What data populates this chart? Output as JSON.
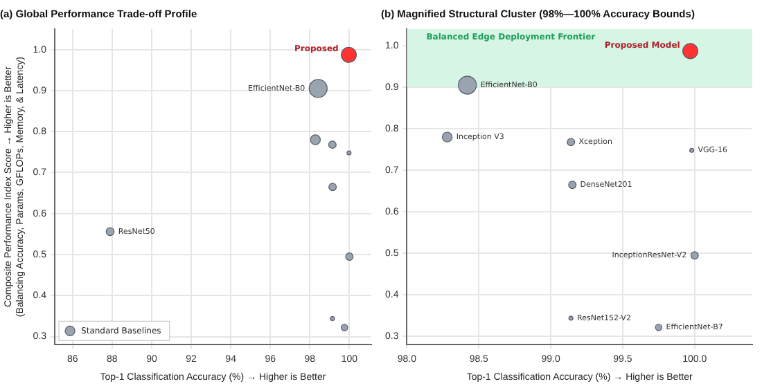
{
  "chart_data": [
    {
      "type": "bubble",
      "title": "(a) Global Performance Trade-off Profile",
      "xlabel": "Top-1 Classification Accuracy (%) → Higher is Better",
      "ylabel": "Composite Performance Index Score → Higher is Better\n(Balancing Accuracy, Params, GFLOPs, Memory, & Latency)",
      "xlim": [
        85.1,
        101.1
      ],
      "xticks": [
        86,
        88,
        90,
        92,
        94,
        96,
        98,
        100
      ],
      "ylim": [
        0.28,
        1.05
      ],
      "yticks": [
        0.3,
        0.4,
        0.5,
        0.6,
        0.7,
        0.8,
        0.9,
        {
          "value": 1,
          "label": "1.0"
        }
      ],
      "grid": true,
      "legend": "bottom left",
      "marker": "circle",
      "series": [
        {
          "name": "Standard Baselines",
          "color": "#9aa3b0",
          "x": [
            98.42,
            98.28,
            99.14,
            99.98,
            99.15,
            100.0,
            99.14,
            99.75,
            87.9
          ],
          "values": [
            0.905,
            0.78,
            0.768,
            0.748,
            0.665,
            0.495,
            0.344,
            0.322,
            0.556
          ],
          "sizes": [
            1,
            0.3,
            0.17,
            0.05,
            0.17,
            0.17,
            0.05,
            0.13,
            0.2
          ]
        },
        {
          "name": "Proposed",
          "color": "#ff3333",
          "x": [
            99.97
          ],
          "values": [
            0.987
          ],
          "sizes": [
            0.7
          ]
        }
      ],
      "annotations": [
        {
          "text": "EfficientNet-B0",
          "x": 98.42,
          "y": 0.905
        },
        {
          "text": "ResNet50",
          "x": 87.9,
          "y": 0.556
        }
      ]
    },
    {
      "type": "bubble",
      "title": "(b) Magnified Structural Cluster (98%—100% Accuracy Bounds)",
      "xlabel": "Top-1 Classification Accuracy (%) → Higher is Better",
      "xlim": [
        98,
        100.4
      ],
      "xticks": [
        {
          "value": 98,
          "label": "98.0"
        },
        98.5,
        {
          "value": 99,
          "label": "99.0"
        },
        99.5,
        {
          "value": 100,
          "label": "100.0"
        }
      ],
      "ylim": [
        0.28,
        1.04
      ],
      "yticks": [
        0.3,
        0.4,
        0.5,
        0.6,
        0.7,
        0.8,
        0.9,
        {
          "value": 1,
          "label": "1.0"
        }
      ],
      "grid": true,
      "marker": "circle",
      "bands": [
        {
          "axis": "y",
          "from": 0.9,
          "to": 1.04,
          "label": "Balanced Edge Deployment Frontier",
          "color": "#d6f5e4"
        }
      ],
      "series": [
        {
          "color": "#9aa3b0",
          "x": [
            98.42,
            98.28,
            99.14,
            99.98,
            99.15,
            100.0,
            99.14,
            99.75
          ],
          "values": [
            0.905,
            0.78,
            0.768,
            0.748,
            0.665,
            0.495,
            0.344,
            0.322
          ],
          "sizes": [
            1,
            0.3,
            0.17,
            0.05,
            0.17,
            0.17,
            0.05,
            0.13
          ]
        },
        {
          "name": "Proposed Model",
          "color": "#ff3333",
          "x": [
            99.97
          ],
          "values": [
            0.987
          ],
          "sizes": [
            0.7
          ]
        }
      ],
      "annotations": [
        {
          "text": "EfficientNet-B0",
          "x": 98.42,
          "y": 0.905
        },
        {
          "text": "Inception V3",
          "x": 98.28,
          "y": 0.78
        },
        {
          "text": "Xception",
          "x": 99.14,
          "y": 0.768
        },
        {
          "text": "VGG-16",
          "x": 99.98,
          "y": 0.748
        },
        {
          "text": "DenseNet201",
          "x": 99.15,
          "y": 0.665
        },
        {
          "text": "InceptionResNet-V2",
          "x": 100.0,
          "y": 0.495
        },
        {
          "text": "ResNet152-V2",
          "x": 99.14,
          "y": 0.344
        },
        {
          "text": "EfficientNet-B7",
          "x": 99.75,
          "y": 0.322
        }
      ]
    }
  ]
}
